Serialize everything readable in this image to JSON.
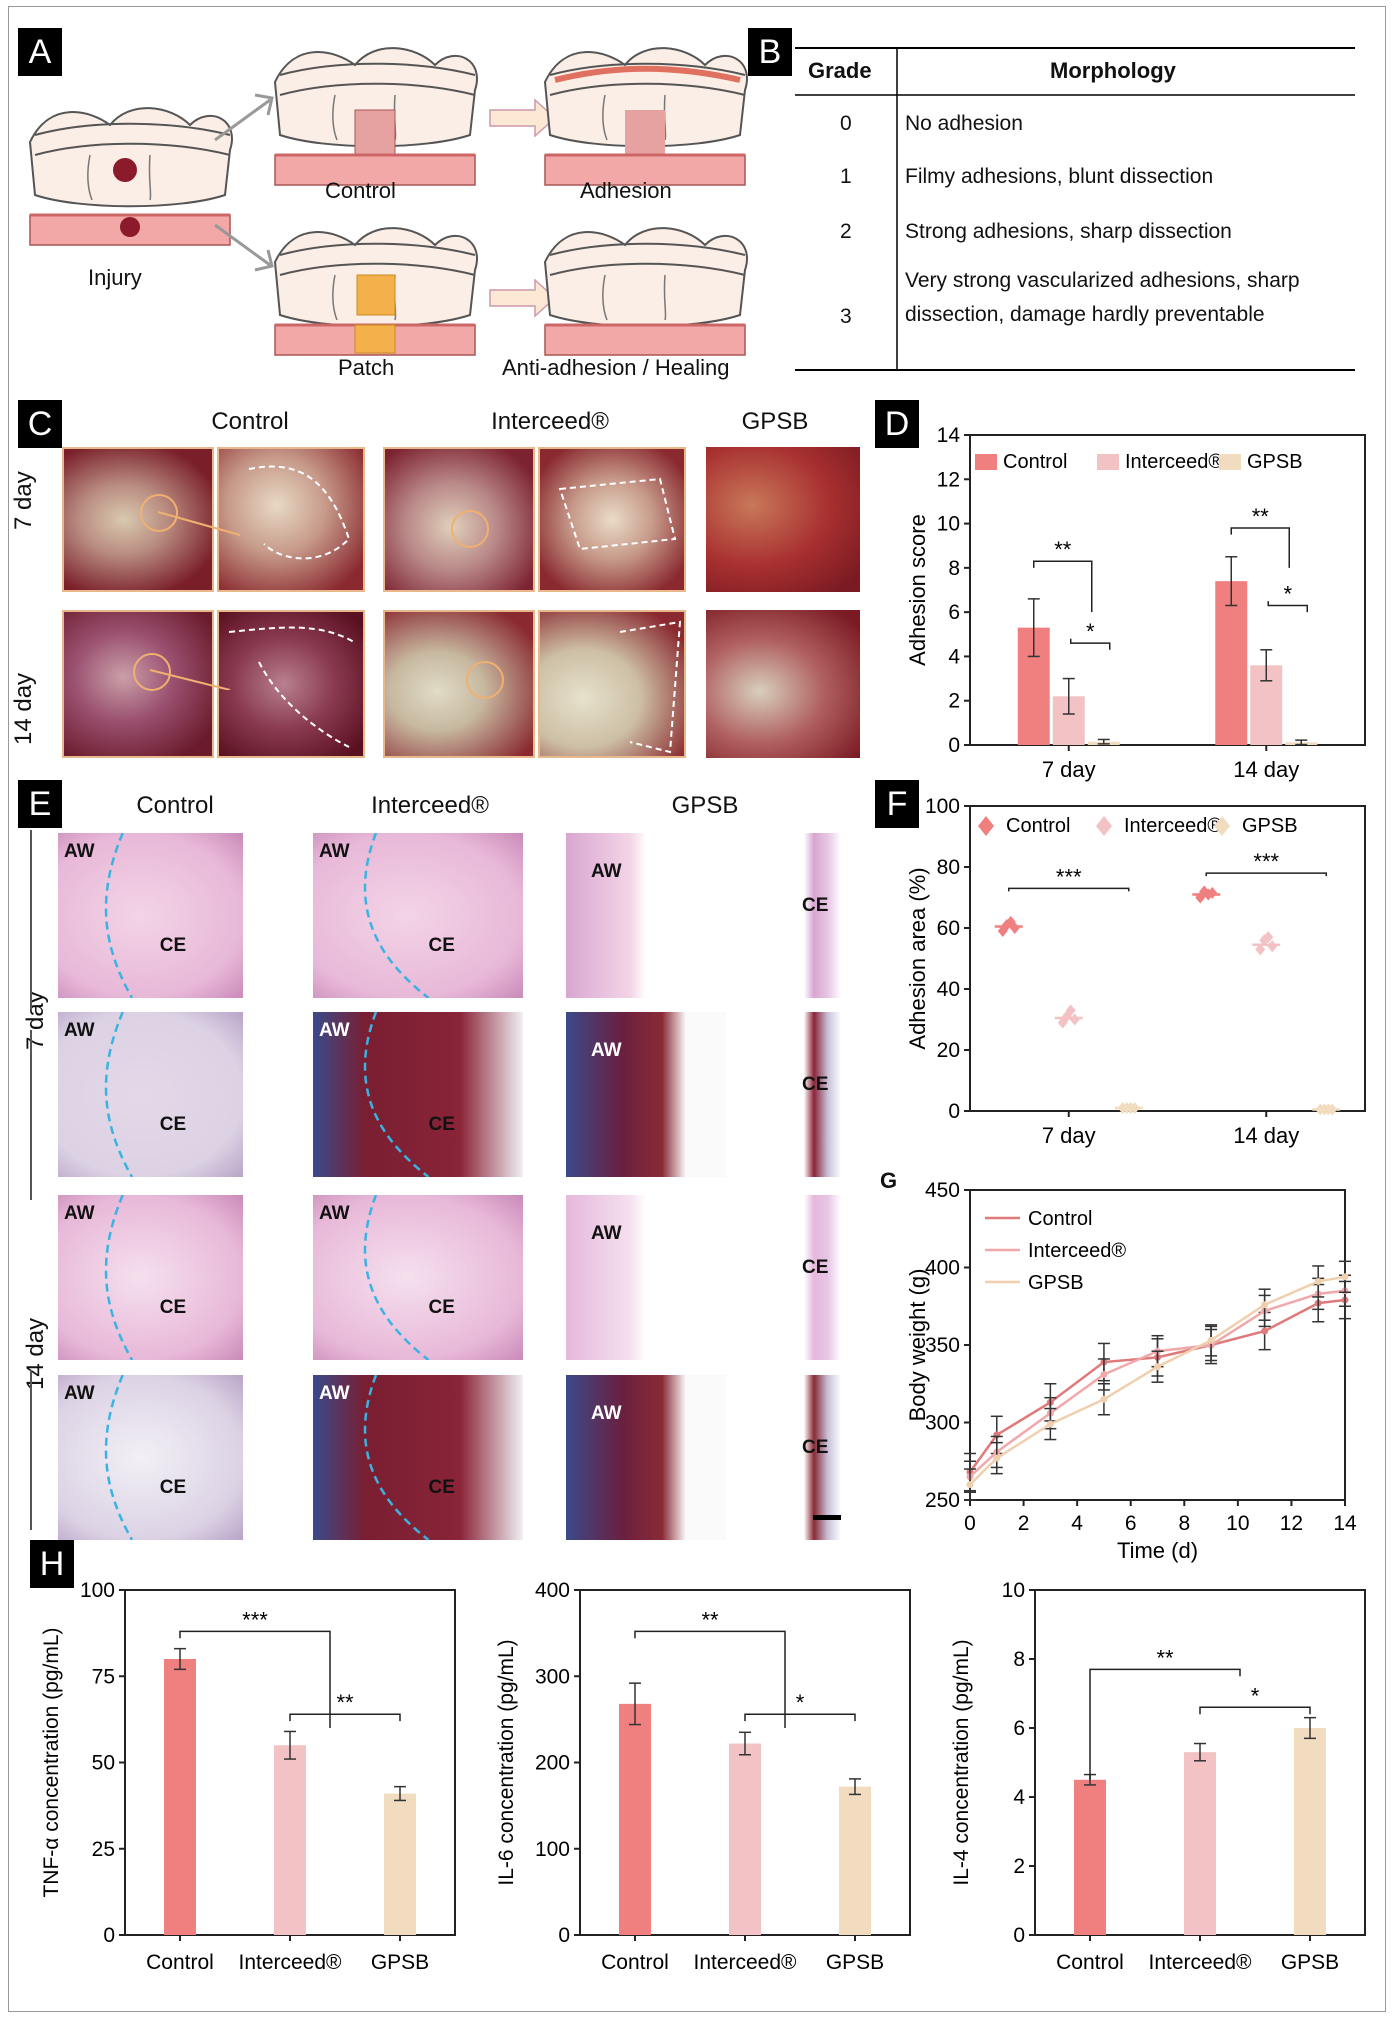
{
  "panel_labels": {
    "a": "A",
    "b": "B",
    "c": "C",
    "d": "D",
    "e": "E",
    "f": "F",
    "g": "G",
    "h": "H"
  },
  "panel_a": {
    "injury": "Injury",
    "control": "Control",
    "adhesion": "Adhesion",
    "patch": "Patch",
    "anti": "Anti-adhesion / Healing"
  },
  "panel_b": {
    "headers": [
      "Grade",
      "Morphology"
    ],
    "rows": [
      {
        "grade": "0",
        "text": "No adhesion"
      },
      {
        "grade": "1",
        "text": "Filmy adhesions, blunt dissection"
      },
      {
        "grade": "2",
        "text": "Strong adhesions, sharp dissection"
      },
      {
        "grade": "3",
        "text": "Very strong vascularized adhesions, sharp dissection, damage hardly preventable"
      }
    ]
  },
  "panel_c": {
    "cols": [
      "Control",
      "Interceed®",
      "GPSB"
    ],
    "rows": [
      "7 day",
      "14 day"
    ]
  },
  "panel_e": {
    "cols": [
      "Control",
      "Interceed®",
      "GPSB"
    ],
    "rows": [
      "7 day",
      "14 day"
    ],
    "aw": "AW",
    "ce": "CE"
  },
  "colors": {
    "control": "#f08080",
    "interceed": "#f3c2c4",
    "gpsb": "#f2dcc0",
    "axis": "#222"
  },
  "chart_data": [
    {
      "id": "D",
      "type": "bar",
      "ylabel": "Adhesion score",
      "ylim": [
        0,
        14
      ],
      "yticks": [
        0,
        2,
        4,
        6,
        8,
        10,
        12,
        14
      ],
      "categories": [
        "7 day",
        "14 day"
      ],
      "legend": [
        "Control",
        "Interceed®",
        "GPSB"
      ],
      "series": [
        {
          "name": "Control",
          "values": [
            5.3,
            7.4
          ],
          "err": [
            1.3,
            1.1
          ]
        },
        {
          "name": "Interceed®",
          "values": [
            2.2,
            3.6
          ],
          "err": [
            0.8,
            0.7
          ]
        },
        {
          "name": "GPSB",
          "values": [
            0.15,
            0.12
          ],
          "err": [
            0.1,
            0.1
          ]
        }
      ],
      "sig": [
        "**",
        "*",
        "**",
        "*"
      ]
    },
    {
      "id": "F",
      "type": "scatter",
      "ylabel": "Adhesion area (%)",
      "ylim": [
        0,
        100
      ],
      "yticks": [
        0,
        20,
        40,
        60,
        80,
        100
      ],
      "categories": [
        "7 day",
        "14 day"
      ],
      "legend": [
        "Control",
        "Interceed®",
        "GPSB"
      ],
      "series": [
        {
          "name": "Control",
          "values": [
            60.5,
            71
          ],
          "points": [
            [
              59,
              61,
              62,
              60
            ],
            [
              70,
              72,
              71,
              71.5
            ]
          ]
        },
        {
          "name": "Interceed®",
          "values": [
            30.5,
            54.5
          ],
          "points": [
            [
              29,
              31,
              33,
              30
            ],
            [
              53,
              56,
              57,
              54
            ]
          ]
        },
        {
          "name": "GPSB",
          "values": [
            1,
            0.5
          ],
          "points": [
            [
              1,
              1,
              1,
              1
            ],
            [
              0.5,
              0.5,
              0.5,
              0.5
            ]
          ]
        }
      ],
      "sig": [
        "***",
        "***"
      ]
    },
    {
      "id": "G",
      "type": "line",
      "xlabel": "Time (d)",
      "ylabel": "Body weight (g)",
      "xlim": [
        0,
        14
      ],
      "ylim": [
        250,
        450
      ],
      "xticks": [
        0,
        2,
        4,
        6,
        8,
        10,
        12,
        14
      ],
      "yticks": [
        250,
        300,
        350,
        400,
        450
      ],
      "legend": [
        "Control",
        "Interceed®",
        "GPSB"
      ],
      "x": [
        0,
        1,
        3,
        5,
        7,
        9,
        11,
        13,
        14
      ],
      "series": [
        {
          "name": "Control",
          "values": [
            268,
            292,
            313,
            339,
            342,
            350,
            359,
            377,
            379
          ],
          "err": [
            12,
            12,
            12,
            12,
            12,
            12,
            12,
            12,
            12
          ]
        },
        {
          "name": "Interceed®",
          "values": [
            265,
            281,
            306,
            331,
            346,
            350,
            372,
            383,
            385
          ],
          "err": [
            10,
            10,
            10,
            10,
            10,
            10,
            10,
            10,
            10
          ]
        },
        {
          "name": "GPSB",
          "values": [
            260,
            277,
            299,
            315,
            336,
            353,
            376,
            391,
            394
          ],
          "err": [
            10,
            10,
            10,
            10,
            10,
            10,
            10,
            10,
            10
          ]
        }
      ]
    },
    {
      "id": "H1",
      "type": "bar",
      "ylabel": "TNF-α concentration (pg/mL)",
      "ylim": [
        0,
        100
      ],
      "yticks": [
        0,
        25,
        50,
        75,
        100
      ],
      "categories": [
        "Control",
        "Interceed®",
        "GPSB"
      ],
      "values": [
        80,
        55,
        41
      ],
      "err": [
        3,
        4,
        2
      ],
      "sig": [
        "***",
        "**"
      ]
    },
    {
      "id": "H2",
      "type": "bar",
      "ylabel": "IL-6 concentration (pg/mL)",
      "ylim": [
        0,
        400
      ],
      "yticks": [
        0,
        100,
        200,
        300,
        400
      ],
      "categories": [
        "Control",
        "Interceed®",
        "GPSB"
      ],
      "values": [
        268,
        222,
        172
      ],
      "err": [
        24,
        13,
        9
      ],
      "sig": [
        "**",
        "*"
      ]
    },
    {
      "id": "H3",
      "type": "bar",
      "ylabel": "IL-4 concentration (pg/mL)",
      "ylim": [
        0,
        10
      ],
      "yticks": [
        0,
        2,
        4,
        6,
        8,
        10
      ],
      "categories": [
        "Control",
        "Interceed®",
        "GPSB"
      ],
      "values": [
        4.5,
        5.3,
        6.0
      ],
      "err": [
        0.15,
        0.25,
        0.3
      ],
      "sig": [
        "**",
        "*"
      ]
    }
  ]
}
